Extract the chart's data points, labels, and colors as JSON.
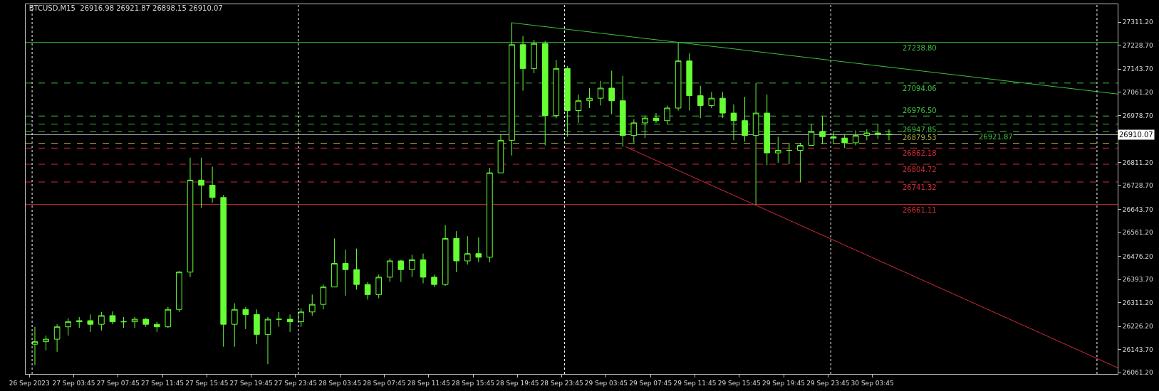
{
  "chart_data": {
    "type": "candlestick",
    "title": "BTCUSD,M15  26916.98 26921.87 26898.15 26910.07",
    "color": "#66ff33",
    "x": [
      "2023-09-27T00:15",
      "2023-09-27T01:15",
      "2023-09-27T02:15",
      "2023-09-27T03:15",
      "2023-09-27T04:15",
      "2023-09-27T05:15",
      "2023-09-27T06:15",
      "2023-09-27T07:15",
      "2023-09-27T08:15",
      "2023-09-27T09:15",
      "2023-09-27T10:15",
      "2023-09-27T11:15",
      "2023-09-27T12:15",
      "2023-09-27T13:15",
      "2023-09-27T14:15",
      "2023-09-27T15:15",
      "2023-09-27T16:15",
      "2023-09-27T17:15",
      "2023-09-27T18:15",
      "2023-09-27T19:15",
      "2023-09-27T20:15",
      "2023-09-27T21:15",
      "2023-09-27T22:15",
      "2023-09-27T23:15",
      "2023-09-28T00:15",
      "2023-09-28T01:15",
      "2023-09-28T02:15",
      "2023-09-28T03:15",
      "2023-09-28T04:15",
      "2023-09-28T05:15",
      "2023-09-28T06:15",
      "2023-09-28T07:15",
      "2023-09-28T08:15",
      "2023-09-28T09:15",
      "2023-09-28T10:15",
      "2023-09-28T11:15",
      "2023-09-28T12:15",
      "2023-09-28T13:15",
      "2023-09-28T14:15",
      "2023-09-28T15:15",
      "2023-09-28T16:15",
      "2023-09-28T17:15",
      "2023-09-28T18:15",
      "2023-09-28T19:15",
      "2023-09-28T20:15",
      "2023-09-28T21:15",
      "2023-09-28T22:15",
      "2023-09-28T23:15",
      "2023-09-29T00:15",
      "2023-09-29T01:15",
      "2023-09-29T02:15",
      "2023-09-29T03:15",
      "2023-09-29T04:15",
      "2023-09-29T05:15",
      "2023-09-29T06:15",
      "2023-09-29T07:15",
      "2023-09-29T08:15",
      "2023-09-29T09:15",
      "2023-09-29T10:15",
      "2023-09-29T11:15",
      "2023-09-29T12:15",
      "2023-09-29T13:15",
      "2023-09-29T14:15",
      "2023-09-29T15:15",
      "2023-09-29T16:15",
      "2023-09-29T17:15",
      "2023-09-29T18:15",
      "2023-09-29T19:15",
      "2023-09-29T20:15",
      "2023-09-29T21:15",
      "2023-09-29T22:15",
      "2023-09-29T23:15",
      "2023-09-30T00:15",
      "2023-09-30T01:15",
      "2023-09-30T02:15",
      "2023-09-30T03:15",
      "2023-09-30T04:15",
      "2023-09-30T05:15"
    ],
    "ohlc": [
      [
        26163,
        26225,
        26088,
        26172
      ],
      [
        26172,
        26194,
        26141,
        26181
      ],
      [
        26181,
        26234,
        26136,
        26225
      ],
      [
        26225,
        26256,
        26194,
        26243
      ],
      [
        26243,
        26260,
        26221,
        26247
      ],
      [
        26247,
        26269,
        26207,
        26234
      ],
      [
        26234,
        26278,
        26212,
        26265
      ],
      [
        26265,
        26280,
        26234,
        26243
      ],
      [
        26243,
        26260,
        26221,
        26243
      ],
      [
        26243,
        26260,
        26221,
        26252
      ],
      [
        26252,
        26256,
        26225,
        26234
      ],
      [
        26234,
        26243,
        26207,
        26225
      ],
      [
        26225,
        26296,
        26221,
        26287
      ],
      [
        26287,
        26424,
        26278,
        26420
      ],
      [
        26420,
        26828,
        26402,
        26748
      ],
      [
        26748,
        26828,
        26650,
        26730
      ],
      [
        26730,
        26796,
        26668,
        26686
      ],
      [
        26686,
        26695,
        26154,
        26234
      ],
      [
        26234,
        26309,
        26154,
        26287
      ],
      [
        26287,
        26296,
        26217,
        26269
      ],
      [
        26269,
        26287,
        26163,
        26198
      ],
      [
        26198,
        26260,
        26092,
        26252
      ],
      [
        26252,
        26278,
        26225,
        26252
      ],
      [
        26252,
        26269,
        26207,
        26243
      ],
      [
        26243,
        26291,
        26225,
        26278
      ],
      [
        26278,
        26340,
        26265,
        26305
      ],
      [
        26305,
        26376,
        26287,
        26367
      ],
      [
        26367,
        26540,
        26367,
        26451
      ],
      [
        26451,
        26500,
        26336,
        26429
      ],
      [
        26429,
        26504,
        26358,
        26376
      ],
      [
        26376,
        26385,
        26322,
        26340
      ],
      [
        26340,
        26411,
        26327,
        26402
      ],
      [
        26402,
        26469,
        26385,
        26460
      ],
      [
        26460,
        26464,
        26385,
        26429
      ],
      [
        26429,
        26482,
        26402,
        26464
      ],
      [
        26464,
        26486,
        26380,
        26402
      ],
      [
        26402,
        26411,
        26367,
        26376
      ],
      [
        26376,
        26588,
        26371,
        26540
      ],
      [
        26540,
        26566,
        26420,
        26460
      ],
      [
        26460,
        26548,
        26447,
        26486
      ],
      [
        26486,
        26544,
        26455,
        26473
      ],
      [
        26473,
        26792,
        26455,
        26774
      ],
      [
        26774,
        26912,
        26774,
        26890
      ],
      [
        26890,
        27310,
        26836,
        27231
      ],
      [
        27231,
        27262,
        27067,
        27146
      ],
      [
        27146,
        27248,
        27129,
        27235
      ],
      [
        27235,
        27244,
        26872,
        26978
      ],
      [
        26978,
        27177,
        26969,
        27146
      ],
      [
        27146,
        27155,
        26903,
        26996
      ],
      [
        26996,
        27053,
        26952,
        27031
      ],
      [
        27031,
        27076,
        27005,
        27040
      ],
      [
        27040,
        27102,
        27014,
        27076
      ],
      [
        27076,
        27138,
        26983,
        27031
      ],
      [
        27031,
        27120,
        26867,
        26907
      ],
      [
        26907,
        26965,
        26881,
        26952
      ],
      [
        26952,
        26978,
        26898,
        26969
      ],
      [
        26969,
        26987,
        26952,
        26960
      ],
      [
        26960,
        27014,
        26947,
        27005
      ],
      [
        27005,
        27239,
        26996,
        27173
      ],
      [
        27173,
        27200,
        26996,
        27049
      ],
      [
        27049,
        27084,
        26969,
        27014
      ],
      [
        27014,
        27062,
        27005,
        27040
      ],
      [
        27040,
        27062,
        26969,
        26987
      ],
      [
        26987,
        27018,
        26890,
        26960
      ],
      [
        26960,
        27045,
        26885,
        26907
      ],
      [
        26907,
        27094,
        26661,
        26987
      ],
      [
        26987,
        27053,
        26801,
        26845
      ],
      [
        26845,
        26903,
        26810,
        26854
      ],
      [
        26854,
        26881,
        26805,
        26854
      ],
      [
        26854,
        26881,
        26741,
        26872
      ],
      [
        26872,
        26947,
        26872,
        26921
      ],
      [
        26921,
        26976,
        26876,
        26903
      ],
      [
        26903,
        26921,
        26876,
        26898
      ],
      [
        26898,
        26912,
        26862,
        26881
      ],
      [
        26881,
        26925,
        26872,
        26907
      ],
      [
        26907,
        26929,
        26890,
        26916
      ],
      [
        26916,
        26948,
        26894,
        26912
      ],
      [
        26912,
        26929,
        26890,
        26910
      ]
    ],
    "series": [
      {
        "type": "line",
        "color": "#3fbf3f",
        "x": [
          "2023-09-28T19:15",
          "2023-10-01T01:52"
        ],
        "values": [
          27309,
          27055
        ]
      },
      {
        "type": "line",
        "color": "#d02b3a",
        "x": [
          "2023-09-29T05:30",
          "2023-10-01T01:52"
        ],
        "values": [
          26867,
          26079
        ]
      }
    ],
    "xlim": [
      "2023-09-26T23:25",
      "2023-10-01T01:52"
    ],
    "xticks": [
      {
        "value": "2023-09-26T23:45",
        "label": "26 Sep 2023"
      },
      {
        "value": "2023-09-27T03:45",
        "label": "27 Sep 03:45"
      },
      {
        "value": "2023-09-27T07:45",
        "label": "27 Sep 07:45"
      },
      {
        "value": "2023-09-27T11:45",
        "label": "27 Sep 11:45"
      },
      {
        "value": "2023-09-27T15:45",
        "label": "27 Sep 15:45"
      },
      {
        "value": "2023-09-27T19:45",
        "label": "27 Sep 19:45"
      },
      {
        "value": "2023-09-27T23:45",
        "label": "27 Sep 23:45"
      },
      {
        "value": "2023-09-28T03:45",
        "label": "28 Sep 03:45"
      },
      {
        "value": "2023-09-28T07:45",
        "label": "28 Sep 07:45"
      },
      {
        "value": "2023-09-28T11:45",
        "label": "28 Sep 11:45"
      },
      {
        "value": "2023-09-28T15:45",
        "label": "28 Sep 15:45"
      },
      {
        "value": "2023-09-28T19:45",
        "label": "28 Sep 19:45"
      },
      {
        "value": "2023-09-28T23:45",
        "label": "28 Sep 23:45"
      },
      {
        "value": "2023-09-29T03:45",
        "label": "29 Sep 03:45"
      },
      {
        "value": "2023-09-29T07:45",
        "label": "29 Sep 07:45"
      },
      {
        "value": "2023-09-29T11:45",
        "label": "29 Sep 11:45"
      },
      {
        "value": "2023-09-29T15:45",
        "label": "29 Sep 15:45"
      },
      {
        "value": "2023-09-29T19:45",
        "label": "29 Sep 19:45"
      },
      {
        "value": "2023-09-29T23:45",
        "label": "29 Sep 23:45"
      },
      {
        "value": "2023-09-30T03:45",
        "label": "30 Sep 03:45"
      }
    ],
    "ylim": [
      26057,
      27375
    ],
    "yticks": [
      {
        "value": 26061.2,
        "label": "26061.20"
      },
      {
        "value": 26143.7,
        "label": "26143.70"
      },
      {
        "value": 26226.2,
        "label": "26226.20"
      },
      {
        "value": 26311.2,
        "label": "26311.20"
      },
      {
        "value": 26393.7,
        "label": "26393.70"
      },
      {
        "value": 26476.2,
        "label": "26476.20"
      },
      {
        "value": 26561.2,
        "label": "26561.20"
      },
      {
        "value": 26643.7,
        "label": "26643.70"
      },
      {
        "value": 26728.7,
        "label": "26728.70"
      },
      {
        "value": 26811.2,
        "label": "26811.20"
      },
      {
        "value": 26893.7,
        "label": null
      },
      {
        "value": 26978.7,
        "label": "26978.70"
      },
      {
        "value": 27061.2,
        "label": "27061.20"
      },
      {
        "value": 27143.7,
        "label": "27143.70"
      },
      {
        "value": 27228.7,
        "label": "27228.70"
      },
      {
        "value": 27311.2,
        "label": "27311.20"
      }
    ],
    "ref_lines": [
      {
        "axis": "y",
        "value": 27238.8,
        "label": "27238.80",
        "color": "#3fbf3f",
        "line_style": "solid"
      },
      {
        "axis": "y",
        "value": 27094.06,
        "label": "27094.06",
        "color": "#3fbf3f",
        "line_style": "dashed"
      },
      {
        "axis": "y",
        "value": 26976.5,
        "label": "26976.50",
        "color": "#3fbf3f",
        "line_style": "dashed"
      },
      {
        "axis": "y",
        "value": 26947.85,
        "label": "26947.85",
        "color": "#3fbf3f",
        "line_style": "dashed"
      },
      {
        "axis": "y",
        "value": 26921.87,
        "label": "26921.87",
        "color": "#3fbf3f",
        "line_style": "dashed"
      },
      {
        "axis": "y",
        "value": 26879.53,
        "label": "26879.53",
        "color": "#a0a83a",
        "line_style": "dashed"
      },
      {
        "axis": "y",
        "value": 26862.18,
        "label": "26862.18",
        "color": "#d02b3a",
        "line_style": "dashed"
      },
      {
        "axis": "y",
        "value": 26804.72,
        "label": "26804.72",
        "color": "#d02b3a",
        "line_style": "dashed"
      },
      {
        "axis": "y",
        "value": 26741.32,
        "label": "26741.32",
        "color": "#d02b3a",
        "line_style": "dashed"
      },
      {
        "axis": "y",
        "value": 26661.11,
        "label": "26661.11",
        "color": "#d02b3a",
        "line_style": "solid"
      },
      {
        "axis": "y",
        "value": 26910.07,
        "label": "26910.07",
        "color": "#b0b0b0",
        "line_style": "solid"
      },
      {
        "axis": "x",
        "value": "2023-09-27T00:00",
        "color": "#ffffff",
        "line_style": "dotted"
      },
      {
        "axis": "x",
        "value": "2023-09-28T00:00",
        "color": "#ffffff",
        "line_style": "dotted"
      },
      {
        "axis": "x",
        "value": "2023-09-29T00:00",
        "color": "#ffffff",
        "line_style": "dotted"
      },
      {
        "axis": "x",
        "value": "2023-09-30T00:00",
        "color": "#ffffff",
        "line_style": "dotted"
      },
      {
        "axis": "x",
        "value": "2023-10-01T00:00",
        "color": "#ffffff",
        "line_style": "dotted"
      }
    ],
    "grid": false
  }
}
